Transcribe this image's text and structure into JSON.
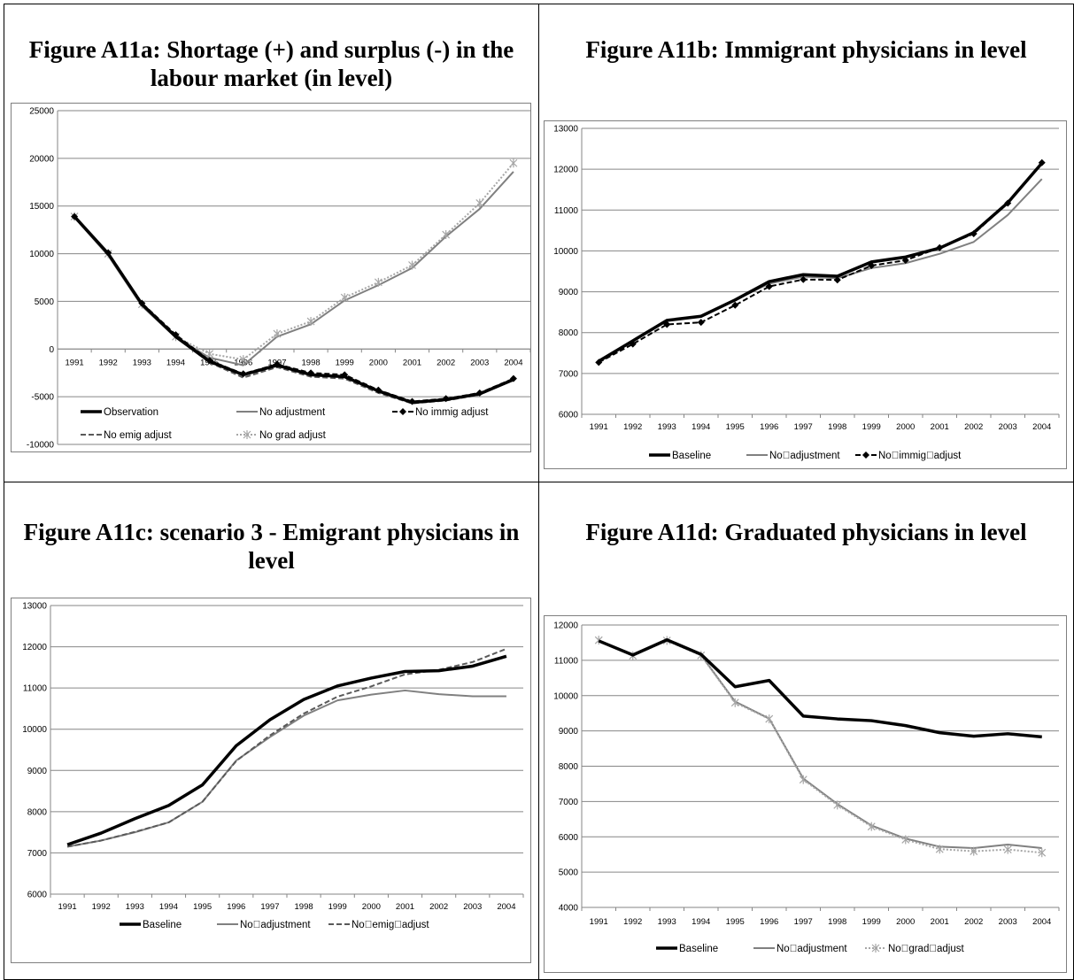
{
  "panels": [
    {
      "title": "Figure A11a: Shortage (+) and surplus (-) in the labour market (in level)",
      "chart_data": {
        "type": "line",
        "x": [
          "1991",
          "1992",
          "1993",
          "1994",
          "1995",
          "1996",
          "1997",
          "1998",
          "1999",
          "2000",
          "2001",
          "2002",
          "2003",
          "2004"
        ],
        "ylim": [
          -10000,
          25000
        ],
        "yticks": [
          -10000,
          -5000,
          0,
          5000,
          10000,
          15000,
          20000,
          25000
        ],
        "xaxis_at_zero": true,
        "grid": true,
        "legend_position": "bottom-inside",
        "series": [
          {
            "name": "Observation",
            "color": "#000000",
            "style": "solid-thick",
            "values": [
              13900,
              10000,
              4700,
              1300,
              -1300,
              -2700,
              -1700,
              -2700,
              -2900,
              -4400,
              -5600,
              -5300,
              -4700,
              -3200
            ]
          },
          {
            "name": "No adjustment",
            "color": "#808080",
            "style": "solid",
            "values": [
              13800,
              9800,
              4500,
              1200,
              -900,
              -1700,
              1300,
              2600,
              5100,
              6700,
              8500,
              11800,
              14700,
              18600
            ]
          },
          {
            "name": "No immig adjust",
            "color": "#000000",
            "style": "dash-diamond",
            "values": [
              13900,
              10100,
              4800,
              1500,
              -1200,
              -2600,
              -1600,
              -2500,
              -2700,
              -4300,
              -5500,
              -5200,
              -4600,
              -3100
            ]
          },
          {
            "name": "No emig adjust",
            "color": "#595959",
            "style": "dashed",
            "values": [
              13800,
              9900,
              4600,
              1300,
              -1400,
              -3000,
              -1900,
              -2900,
              -3100,
              -4600,
              -5700,
              -5400,
              -4800,
              -3100
            ]
          },
          {
            "name": "No grad adjust",
            "color": "#a6a6a6",
            "style": "dotted-star",
            "values": [
              13900,
              10000,
              4700,
              1300,
              -500,
              -1100,
              1600,
              2900,
              5400,
              7000,
              8800,
              12000,
              15300,
              19500
            ]
          }
        ]
      }
    },
    {
      "title": "Figure A11b: Immigrant physicians in level",
      "chart_data": {
        "type": "line",
        "x": [
          "1991",
          "1992",
          "1993",
          "1994",
          "1995",
          "1996",
          "1997",
          "1998",
          "1999",
          "2000",
          "2001",
          "2002",
          "2003",
          "2004"
        ],
        "ylim": [
          6000,
          13000
        ],
        "yticks": [
          6000,
          7000,
          8000,
          9000,
          10000,
          11000,
          12000,
          13000
        ],
        "grid": true,
        "legend_position": "bottom",
        "series": [
          {
            "name": "Baseline",
            "color": "#000000",
            "style": "solid-thick",
            "values": [
              7300,
              7800,
              8300,
              8400,
              8800,
              9250,
              9420,
              9380,
              9730,
              9850,
              10070,
              10450,
              11180,
              12150
            ]
          },
          {
            "name": "No\u0000adjustment",
            "color": "#808080",
            "style": "solid",
            "values": [
              7320,
              7800,
              8300,
              8400,
              8800,
              9200,
              9370,
              9330,
              9580,
              9700,
              9930,
              10220,
              10880,
              11760
            ]
          },
          {
            "name": "No\u0000immig\u0000adjust",
            "color": "#000000",
            "style": "dash-diamond",
            "values": [
              7270,
              7720,
              8200,
              8250,
              8670,
              9130,
              9300,
              9290,
              9640,
              9770,
              10080,
              10420,
              11170,
              12160
            ]
          }
        ]
      }
    },
    {
      "title": "Figure A11c: scenario 3 - Emigrant physicians in level",
      "chart_data": {
        "type": "line",
        "x": [
          "1991",
          "1992",
          "1993",
          "1994",
          "1995",
          "1996",
          "1997",
          "1998",
          "1999",
          "2000",
          "2001",
          "2002",
          "2003",
          "2004"
        ],
        "ylim": [
          6000,
          13000
        ],
        "yticks": [
          6000,
          7000,
          8000,
          9000,
          10000,
          11000,
          12000,
          13000
        ],
        "grid": true,
        "legend_position": "bottom",
        "series": [
          {
            "name": "Baseline",
            "color": "#000000",
            "style": "solid-thick",
            "values": [
              7200,
              7480,
              7830,
              8150,
              8650,
              9600,
              10230,
              10720,
              11050,
              11240,
              11400,
              11420,
              11530,
              11770
            ]
          },
          {
            "name": "No\u0000adjustment",
            "color": "#808080",
            "style": "solid",
            "values": [
              7150,
              7300,
              7500,
              7740,
              8240,
              9240,
              9810,
              10330,
              10700,
              10840,
              10940,
              10850,
              10800,
              10800
            ]
          },
          {
            "name": "No\u0000emig\u0000adjust",
            "color": "#595959",
            "style": "dashed",
            "values": [
              7150,
              7300,
              7510,
              7740,
              8240,
              9230,
              9850,
              10380,
              10790,
              11040,
              11330,
              11440,
              11630,
              11950
            ]
          }
        ]
      }
    },
    {
      "title": "Figure A11d: Graduated physicians in level",
      "chart_data": {
        "type": "line",
        "x": [
          "1991",
          "1992",
          "1993",
          "1994",
          "1995",
          "1996",
          "1997",
          "1998",
          "1999",
          "2000",
          "2001",
          "2002",
          "2003",
          "2004"
        ],
        "ylim": [
          4000,
          12000
        ],
        "yticks": [
          4000,
          5000,
          6000,
          7000,
          8000,
          9000,
          10000,
          11000,
          12000
        ],
        "grid": true,
        "legend_position": "bottom",
        "series": [
          {
            "name": "Baseline",
            "color": "#000000",
            "style": "solid-thick",
            "values": [
              11550,
              11150,
              11580,
              11170,
              10250,
              10430,
              9420,
              9340,
              9290,
              9150,
              8950,
              8850,
              8920,
              8830
            ]
          },
          {
            "name": "No\u0000adjustment",
            "color": "#808080",
            "style": "solid",
            "values": [
              11560,
              11150,
              11570,
              11150,
              9830,
              9350,
              7650,
              6930,
              6320,
              5950,
              5720,
              5680,
              5780,
              5680
            ]
          },
          {
            "name": "No\u0000grad\u0000adjust",
            "color": "#a6a6a6",
            "style": "dotted-star",
            "values": [
              11570,
              11130,
              11560,
              11140,
              9800,
              9340,
              7620,
              6900,
              6290,
              5920,
              5650,
              5590,
              5640,
              5550
            ]
          }
        ]
      }
    }
  ]
}
